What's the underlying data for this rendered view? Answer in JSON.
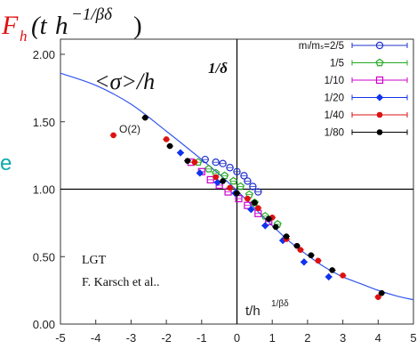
{
  "chart_data": {
    "type": "scatter",
    "title_main": "F",
    "title_sub": "h",
    "title_paren_open": "(t",
    "title_h": "h",
    "title_exp": "−1/βδ",
    "title_paren_close": ")",
    "curve_label_main": "<σ>/h",
    "curve_label_exp": "1/δ",
    "curve_name": "O(2)",
    "xlabel_main": "t/h",
    "xlabel_exp": "1/βδ",
    "annotation_lines": [
      "LGT",
      "F. Karsch et al.."
    ],
    "left_edge_text": "e",
    "xlim": [
      -5,
      5
    ],
    "ylim": [
      0,
      2
    ],
    "x_ticks": [
      "-5",
      "-4",
      "-3",
      "-2",
      "-1",
      "0",
      "1",
      "2",
      "3",
      "4",
      "5"
    ],
    "y_ticks": [
      "0.00",
      "0.50",
      "1.00",
      "1.50",
      "2.00"
    ],
    "hline_y": 1.0,
    "vline_x": 0,
    "curve": [
      {
        "x": -5.0,
        "y": 1.86
      },
      {
        "x": -4.0,
        "y": 1.77
      },
      {
        "x": -3.0,
        "y": 1.63
      },
      {
        "x": -2.0,
        "y": 1.43
      },
      {
        "x": -1.0,
        "y": 1.22
      },
      {
        "x": -0.5,
        "y": 1.11
      },
      {
        "x": 0.0,
        "y": 0.99
      },
      {
        "x": 0.5,
        "y": 0.86
      },
      {
        "x": 1.0,
        "y": 0.73
      },
      {
        "x": 1.5,
        "y": 0.61
      },
      {
        "x": 2.0,
        "y": 0.51
      },
      {
        "x": 2.5,
        "y": 0.42
      },
      {
        "x": 3.0,
        "y": 0.35
      },
      {
        "x": 3.5,
        "y": 0.3
      },
      {
        "x": 4.0,
        "y": 0.25
      },
      {
        "x": 4.5,
        "y": 0.21
      },
      {
        "x": 5.0,
        "y": 0.18
      }
    ],
    "series": [
      {
        "name": "mₗ/mₛ=2/5",
        "color": "#2233cc",
        "marker": "circle-open",
        "points": [
          [
            -0.9,
            1.22
          ],
          [
            -0.6,
            1.2
          ],
          [
            -0.4,
            1.19
          ],
          [
            -0.2,
            1.16
          ],
          [
            0.0,
            1.13
          ],
          [
            0.2,
            1.1
          ],
          [
            0.3,
            1.06
          ],
          [
            0.45,
            1.02
          ],
          [
            0.6,
            0.98
          ]
        ]
      },
      {
        "name": "1/5",
        "color": "#22aa22",
        "marker": "pentagon-open",
        "points": [
          [
            -1.1,
            1.2
          ],
          [
            -0.8,
            1.15
          ],
          [
            -0.6,
            1.12
          ],
          [
            -0.35,
            1.1
          ],
          [
            -0.1,
            1.06
          ],
          [
            0.1,
            1.02
          ],
          [
            0.35,
            0.96
          ],
          [
            0.5,
            0.9
          ],
          [
            0.8,
            0.8
          ],
          [
            1.15,
            0.74
          ]
        ]
      },
      {
        "name": "1/10",
        "color": "#cc00cc",
        "marker": "square-open",
        "points": [
          [
            -1.3,
            1.2
          ],
          [
            -1.0,
            1.13
          ],
          [
            -0.75,
            1.07
          ],
          [
            -0.5,
            1.03
          ],
          [
            -0.25,
            0.98
          ],
          [
            0.05,
            0.93
          ],
          [
            0.3,
            0.88
          ],
          [
            0.6,
            0.82
          ],
          [
            0.9,
            0.76
          ]
        ]
      },
      {
        "name": "1/20",
        "color": "#1133ee",
        "marker": "diamond",
        "points": [
          [
            -1.6,
            1.27
          ],
          [
            -1.05,
            1.12
          ],
          [
            -0.55,
            1.05
          ],
          [
            -0.05,
            0.97
          ],
          [
            0.4,
            0.85
          ],
          [
            0.8,
            0.73
          ],
          [
            1.3,
            0.62
          ],
          [
            1.9,
            0.46
          ],
          [
            2.6,
            0.35
          ]
        ]
      },
      {
        "name": "1/40",
        "color": "#dd1111",
        "marker": "dot",
        "points": [
          [
            -3.5,
            1.4
          ],
          [
            -2.0,
            1.37
          ],
          [
            -1.2,
            1.2
          ],
          [
            -0.6,
            1.09
          ],
          [
            -0.2,
            1.01
          ],
          [
            0.3,
            0.93
          ],
          [
            0.6,
            0.86
          ],
          [
            1.0,
            0.79
          ],
          [
            1.4,
            0.63
          ],
          [
            1.8,
            0.55
          ],
          [
            2.3,
            0.47
          ],
          [
            3.0,
            0.36
          ],
          [
            4.0,
            0.2
          ]
        ]
      },
      {
        "name": "1/80",
        "color": "#000000",
        "marker": "dot",
        "points": [
          [
            -2.6,
            1.53
          ],
          [
            -1.9,
            1.32
          ],
          [
            -1.4,
            1.21
          ],
          [
            -0.4,
            1.06
          ],
          [
            0.0,
            0.97
          ],
          [
            0.5,
            0.9
          ],
          [
            0.9,
            0.78
          ],
          [
            1.1,
            0.72
          ],
          [
            1.4,
            0.65
          ],
          [
            1.7,
            0.58
          ],
          [
            2.1,
            0.51
          ],
          [
            2.7,
            0.4
          ],
          [
            4.1,
            0.23
          ]
        ]
      }
    ]
  }
}
